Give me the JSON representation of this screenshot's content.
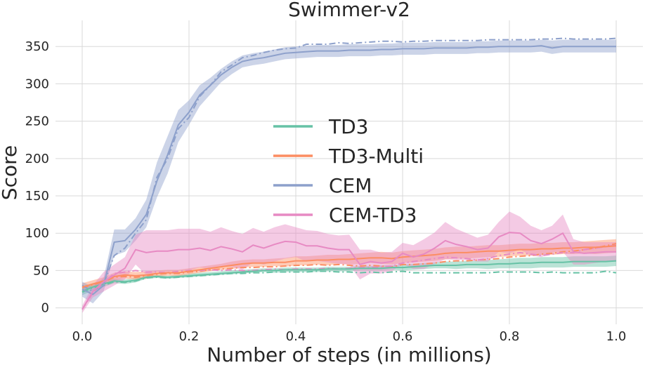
{
  "chart_data": {
    "type": "line",
    "title": "Swimmer-v2",
    "xlabel": "Number of steps (in millions)",
    "ylabel": "Score",
    "xlim": [
      -0.05,
      1.05
    ],
    "ylim": [
      -22,
      385
    ],
    "x_ticks": [
      0.0,
      0.2,
      0.4,
      0.6,
      0.8,
      1.0
    ],
    "x_tick_labels": [
      "0.0",
      "0.2",
      "0.4",
      "0.6",
      "0.8",
      "1.0"
    ],
    "y_ticks": [
      0,
      50,
      100,
      150,
      200,
      250,
      300,
      350
    ],
    "y_tick_labels": [
      "0",
      "50",
      "100",
      "150",
      "200",
      "250",
      "300",
      "350"
    ],
    "grid": true,
    "legend_position": "center",
    "x": [
      0,
      0.02,
      0.04,
      0.06,
      0.08,
      0.1,
      0.12,
      0.14,
      0.16,
      0.18,
      0.2,
      0.22,
      0.24,
      0.26,
      0.28,
      0.3,
      0.32,
      0.34,
      0.36,
      0.38,
      0.4,
      0.42,
      0.44,
      0.46,
      0.48,
      0.5,
      0.52,
      0.54,
      0.56,
      0.58,
      0.6,
      0.62,
      0.64,
      0.66,
      0.68,
      0.7,
      0.72,
      0.74,
      0.76,
      0.78,
      0.8,
      0.82,
      0.84,
      0.86,
      0.88,
      0.9,
      0.92,
      0.94,
      0.96,
      0.98,
      1.0
    ],
    "series": [
      {
        "name": "TD3",
        "color": "#66c2a5",
        "mean": [
          22,
          28,
          32,
          36,
          35,
          37,
          41,
          42,
          41,
          42,
          43,
          44,
          45,
          46,
          47,
          48,
          49,
          50,
          50,
          51,
          51,
          51,
          51,
          52,
          52,
          52,
          53,
          53,
          53,
          54,
          54,
          55,
          56,
          57,
          57,
          57,
          58,
          58,
          58,
          59,
          59,
          60,
          60,
          61,
          61,
          61,
          62,
          62,
          62,
          62,
          63
        ],
        "upper": [
          27,
          33,
          37,
          39,
          38,
          40,
          43,
          44,
          43,
          44,
          46,
          47,
          48,
          49,
          50,
          51,
          52,
          53,
          53,
          54,
          54,
          54,
          54,
          55,
          55,
          55,
          56,
          56,
          57,
          57,
          58,
          59,
          60,
          61,
          62,
          62,
          63,
          63,
          64,
          65,
          66,
          67,
          67,
          68,
          68,
          68,
          69,
          69,
          69,
          69,
          70
        ],
        "lower": [
          17,
          23,
          28,
          33,
          32,
          34,
          39,
          40,
          39,
          40,
          41,
          42,
          43,
          44,
          45,
          46,
          47,
          48,
          47,
          48,
          48,
          48,
          48,
          49,
          49,
          49,
          50,
          50,
          50,
          51,
          50,
          51,
          52,
          53,
          53,
          52,
          53,
          53,
          52,
          53,
          53,
          53,
          53,
          54,
          54,
          54,
          55,
          55,
          55,
          55,
          56
        ],
        "dashed": [
          21,
          27,
          30,
          35,
          34,
          36,
          40,
          41,
          40,
          41,
          42,
          43,
          44,
          45,
          46,
          46,
          47,
          47,
          48,
          48,
          48,
          48,
          49,
          49,
          48,
          48,
          47,
          48,
          47,
          48,
          49,
          47,
          47,
          47,
          47,
          47,
          47,
          47,
          47,
          48,
          48,
          48,
          48,
          47,
          48,
          47,
          47,
          47,
          47,
          49,
          47
        ]
      },
      {
        "name": "TD3-Multi",
        "color": "#fc8d62",
        "mean": [
          28,
          32,
          36,
          42,
          44,
          43,
          44,
          46,
          47,
          47,
          49,
          51,
          53,
          55,
          57,
          59,
          60,
          60,
          61,
          61,
          63,
          63,
          64,
          64,
          65,
          65,
          66,
          67,
          67,
          66,
          68,
          69,
          70,
          71,
          73,
          74,
          74,
          75,
          76,
          76,
          77,
          78,
          78,
          79,
          79,
          80,
          80,
          81,
          81,
          82,
          83
        ],
        "upper": [
          33,
          37,
          41,
          47,
          49,
          48,
          49,
          50,
          51,
          51,
          53,
          55,
          57,
          59,
          62,
          64,
          65,
          65,
          66,
          67,
          69,
          69,
          70,
          71,
          71,
          72,
          73,
          74,
          75,
          74,
          76,
          77,
          78,
          79,
          81,
          82,
          82,
          83,
          84,
          84,
          85,
          86,
          86,
          87,
          87,
          88,
          88,
          89,
          90,
          91,
          92
        ],
        "lower": [
          23,
          27,
          31,
          37,
          39,
          38,
          39,
          42,
          43,
          43,
          45,
          47,
          49,
          51,
          52,
          54,
          55,
          55,
          56,
          55,
          57,
          57,
          58,
          57,
          59,
          58,
          59,
          60,
          59,
          58,
          60,
          61,
          62,
          63,
          65,
          66,
          66,
          67,
          68,
          68,
          69,
          70,
          70,
          71,
          71,
          72,
          72,
          73,
          72,
          73,
          74
        ],
        "dashed": [
          27,
          31,
          35,
          41,
          42,
          41,
          43,
          45,
          46,
          46,
          48,
          49,
          51,
          52,
          53,
          54,
          54,
          55,
          55,
          56,
          57,
          57,
          58,
          57,
          58,
          57,
          56,
          57,
          56,
          55,
          58,
          58,
          59,
          60,
          62,
          63,
          63,
          64,
          65,
          66,
          68,
          69,
          70,
          72,
          73,
          75,
          76,
          78,
          80,
          83,
          86
        ]
      },
      {
        "name": "CEM",
        "color": "#8da0cb",
        "mean": [
          25,
          18,
          30,
          88,
          90,
          105,
          125,
          170,
          205,
          245,
          262,
          285,
          298,
          312,
          322,
          330,
          333,
          335,
          338,
          341,
          342,
          343,
          344,
          344,
          344,
          345,
          345,
          345,
          346,
          346,
          347,
          347,
          347,
          348,
          348,
          348,
          348,
          349,
          349,
          350,
          350,
          350,
          350,
          351,
          348,
          350,
          350,
          350,
          350,
          350,
          350
        ],
        "upper": [
          35,
          28,
          40,
          105,
          105,
          120,
          145,
          195,
          230,
          265,
          278,
          298,
          308,
          320,
          330,
          338,
          341,
          343,
          346,
          349,
          350,
          351,
          352,
          352,
          352,
          353,
          353,
          353,
          354,
          354,
          355,
          355,
          355,
          356,
          356,
          356,
          356,
          357,
          357,
          358,
          358,
          358,
          358,
          359,
          358,
          359,
          359,
          359,
          359,
          359,
          359
        ],
        "lower": [
          15,
          6,
          22,
          70,
          75,
          90,
          108,
          148,
          180,
          222,
          245,
          270,
          286,
          302,
          313,
          322,
          325,
          327,
          330,
          333,
          334,
          335,
          336,
          336,
          336,
          337,
          337,
          337,
          338,
          338,
          339,
          339,
          339,
          340,
          340,
          340,
          340,
          341,
          341,
          342,
          342,
          342,
          342,
          343,
          340,
          342,
          342,
          342,
          342,
          342,
          342
        ],
        "dashed": [
          30,
          22,
          32,
          70,
          80,
          100,
          118,
          175,
          200,
          240,
          255,
          283,
          298,
          316,
          325,
          335,
          338,
          342,
          345,
          347,
          348,
          353,
          353,
          353,
          355,
          354,
          355,
          356,
          357,
          357,
          356,
          357,
          357,
          358,
          358,
          358,
          358,
          358,
          359,
          359,
          359,
          359,
          359,
          360,
          360,
          361,
          360,
          360,
          360,
          360,
          361
        ]
      },
      {
        "name": "CEM-TD3",
        "color": "#e78ac3",
        "mean": [
          -2,
          22,
          35,
          44,
          53,
          78,
          74,
          76,
          76,
          78,
          78,
          80,
          77,
          82,
          79,
          75,
          84,
          80,
          85,
          89,
          88,
          83,
          83,
          80,
          78,
          78,
          58,
          62,
          60,
          62,
          73,
          68,
          72,
          80,
          90,
          85,
          82,
          78,
          80,
          95,
          101,
          100,
          90,
          86,
          92,
          100,
          75,
          73,
          74,
          75,
          75
        ],
        "upper": [
          3,
          30,
          48,
          58,
          68,
          98,
          104,
          104,
          104,
          106,
          106,
          106,
          102,
          108,
          103,
          99,
          107,
          102,
          108,
          112,
          108,
          104,
          103,
          99,
          97,
          98,
          78,
          78,
          74,
          75,
          87,
          84,
          92,
          101,
          115,
          106,
          100,
          94,
          98,
          115,
          129,
          122,
          110,
          104,
          110,
          125,
          92,
          88,
          88,
          88,
          88
        ],
        "lower": [
          -7,
          14,
          22,
          30,
          38,
          58,
          44,
          48,
          48,
          50,
          50,
          54,
          52,
          56,
          55,
          51,
          61,
          58,
          62,
          66,
          68,
          62,
          63,
          61,
          59,
          58,
          38,
          46,
          46,
          49,
          59,
          52,
          52,
          59,
          65,
          64,
          64,
          62,
          62,
          75,
          73,
          78,
          70,
          68,
          74,
          75,
          58,
          58,
          60,
          62,
          62
        ],
        "dashed": [
          -2,
          20,
          34,
          46,
          48,
          50,
          48,
          48,
          47,
          49,
          50,
          50,
          51,
          50,
          51,
          50,
          50,
          51,
          52,
          51,
          52,
          52,
          52,
          53,
          52,
          53,
          54,
          54,
          55,
          56,
          60,
          62,
          64,
          66,
          68,
          67,
          66,
          64,
          66,
          70,
          72,
          74,
          72,
          70,
          72,
          74,
          74,
          78,
          80,
          82,
          84
        ]
      }
    ]
  }
}
